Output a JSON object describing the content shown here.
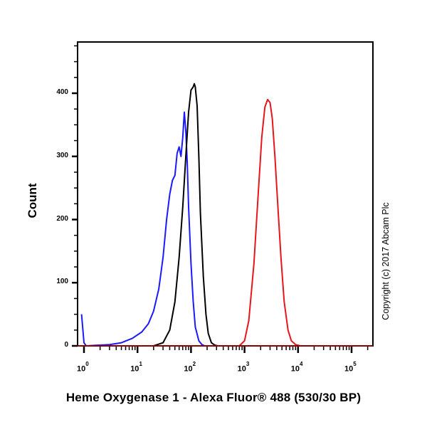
{
  "chart_data": {
    "type": "line",
    "title": "",
    "xlabel": "Heme Oxygenase 1 - Alexa Fluor® 488 (530/30 BP)",
    "ylabel": "Count",
    "xscale": "log",
    "xlim": [
      0.9,
      250000
    ],
    "ylim": [
      0,
      470
    ],
    "x_ticks": [
      "10^0",
      "10^1",
      "10^2",
      "10^3",
      "10^4",
      "10^5"
    ],
    "y_ticks": [
      0,
      100,
      200,
      300,
      400
    ],
    "grid": false,
    "legend": null,
    "annotations": [
      "Copyright (c) 2017 Abcam Plc"
    ],
    "series": [
      {
        "name": "blue",
        "color": "#1a1aff",
        "x": [
          0.9,
          1.0,
          1.1,
          3,
          5,
          8,
          12,
          16,
          20,
          25,
          30,
          35,
          40,
          45,
          50,
          55,
          60,
          65,
          70,
          75,
          80,
          85,
          90,
          100,
          110,
          120,
          140,
          160,
          180,
          200
        ],
        "values": [
          50,
          5,
          0,
          2,
          5,
          12,
          22,
          35,
          55,
          90,
          140,
          200,
          240,
          262,
          270,
          305,
          315,
          300,
          330,
          370,
          340,
          290,
          220,
          130,
          70,
          30,
          8,
          2,
          0,
          0
        ]
      },
      {
        "name": "black",
        "color": "#000000",
        "x": [
          20,
          30,
          40,
          50,
          60,
          70,
          80,
          90,
          100,
          110,
          115,
          120,
          130,
          140,
          150,
          170,
          190,
          210,
          240,
          280,
          320
        ],
        "values": [
          0,
          5,
          25,
          70,
          140,
          220,
          300,
          370,
          405,
          410,
          415,
          410,
          380,
          300,
          210,
          110,
          50,
          20,
          5,
          1,
          0
        ]
      },
      {
        "name": "red",
        "color": "#e8161b",
        "x": [
          800,
          1000,
          1200,
          1500,
          1800,
          2100,
          2400,
          2700,
          3000,
          3300,
          3700,
          4200,
          4800,
          5500,
          6500,
          7500,
          9000,
          11000
        ],
        "values": [
          0,
          8,
          40,
          130,
          240,
          330,
          378,
          390,
          385,
          360,
          300,
          220,
          140,
          70,
          25,
          8,
          2,
          0
        ]
      }
    ]
  },
  "labels": {
    "ylabel": "Count",
    "xlabel": "Heme Oxygenase 1 - Alexa Fluor® 488 (530/30 BP)",
    "copyright": "Copyright (c) 2017 Abcam Plc",
    "yticks": [
      "0",
      "100",
      "200",
      "300",
      "400"
    ],
    "xticks_exp": [
      "0",
      "1",
      "2",
      "3",
      "4",
      "5"
    ]
  }
}
